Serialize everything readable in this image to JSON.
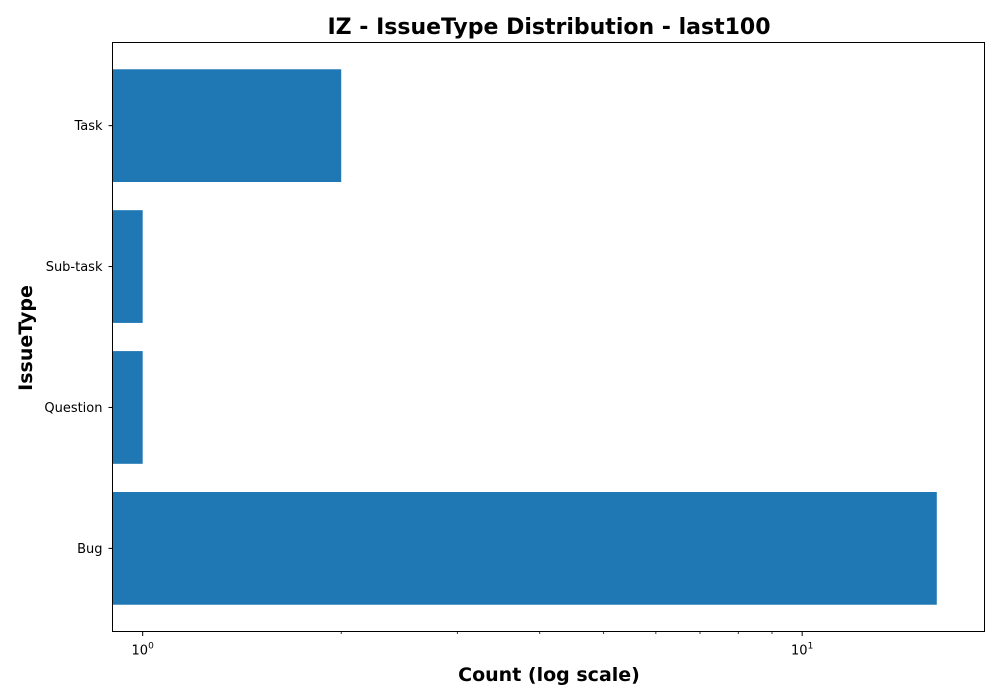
{
  "chart_data": {
    "type": "bar",
    "orientation": "horizontal",
    "title": "IZ - IssueType Distribution - last100",
    "xlabel": "Count (log scale)",
    "ylabel": "IssueType",
    "x_scale": "log",
    "xlim": [
      0.9,
      18.9
    ],
    "categories": [
      "Bug",
      "Question",
      "Sub-task",
      "Task"
    ],
    "values": [
      16,
      1,
      1,
      2
    ],
    "bar_color": "#1f77b4",
    "x_major_ticks": [
      {
        "value": 1,
        "base": "10",
        "exp": "0"
      },
      {
        "value": 10,
        "base": "10",
        "exp": "1"
      }
    ],
    "grid": false,
    "legend": "none"
  }
}
